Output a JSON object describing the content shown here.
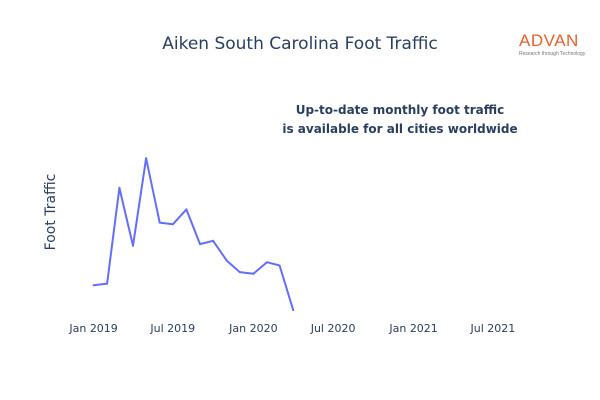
{
  "logo": {
    "word": "ADVAN",
    "tagline": "Research through Technology",
    "color": "#e8612c"
  },
  "annotation": {
    "line1": "Up-to-date monthly foot traffic",
    "line2": "is available for all cities worldwide"
  },
  "chart_data": {
    "type": "line",
    "title": "Aiken South Carolina Foot Traffic",
    "xlabel": "",
    "ylabel": "Foot Traffic",
    "grid": false,
    "line_color": "#636efa",
    "x_tick_labels": [
      "Jan 2019",
      "Jul 2019",
      "Jan 2020",
      "Jul 2020",
      "Jan 2021",
      "Jul 2021"
    ],
    "x_range": [
      "2018-12-01",
      "2021-09-01"
    ],
    "y_range": [
      0,
      100
    ],
    "series": [
      {
        "x": [
          "2019-01-01",
          "2019-02-01",
          "2019-03-01",
          "2019-04-01",
          "2019-05-01",
          "2019-06-01",
          "2019-07-01",
          "2019-08-01",
          "2019-09-01",
          "2019-10-01",
          "2019-11-01",
          "2019-12-01",
          "2020-01-01",
          "2020-02-01",
          "2020-03-01",
          "2020-04-01"
        ],
        "y": [
          18,
          19,
          77,
          42,
          95,
          56,
          55,
          64,
          43,
          45,
          33,
          26,
          25,
          32,
          30,
          3
        ]
      }
    ]
  }
}
